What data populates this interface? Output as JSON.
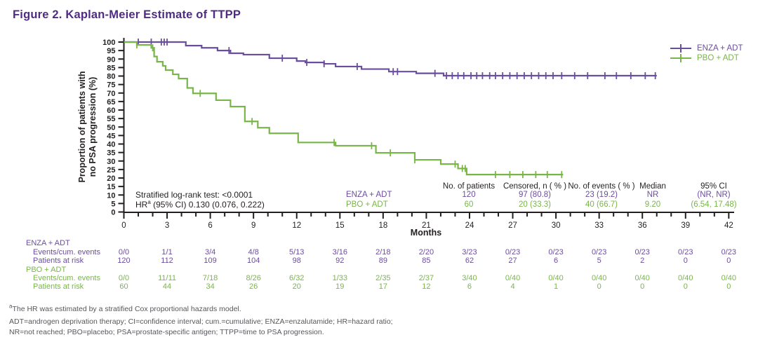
{
  "title": "Figure 2. Kaplan-Meier Estimate of TTPP",
  "colors": {
    "purple": "#6b4d9e",
    "green": "#79b64a",
    "title": "#4f2c82",
    "axis": "#231f20",
    "footnote": "#56575b"
  },
  "legend": [
    {
      "label": "ENZA + ADT",
      "color_key": "purple"
    },
    {
      "label": "PBO + ADT",
      "color_key": "green"
    }
  ],
  "stats": {
    "line1": "Stratified log-rank test: <0.0001",
    "line2_prefix": "HR",
    "line2_sup": "a",
    "line2_rest": " (95% CI) 0.130 (0.076, 0.222)"
  },
  "summary_table": {
    "headers": [
      "No. of patients",
      "Censored, n ( % )",
      "No. of events ( % )",
      "Median",
      "95% CI"
    ],
    "rows": [
      {
        "group": "ENZA + ADT",
        "color_key": "purple",
        "values": [
          "120",
          "97 (80.8)",
          "23 (19.2)",
          "NR",
          "(NR, NR)"
        ]
      },
      {
        "group": "PBO + ADT",
        "color_key": "green",
        "values": [
          "60",
          "20 (33.3)",
          "40 (66.7)",
          "9.20",
          "(6.54, 17.48)"
        ]
      }
    ]
  },
  "chart_data": {
    "type": "line",
    "subtype": "kaplan-meier-step",
    "title": "Kaplan-Meier Estimate of TTPP",
    "xlabel": "Months",
    "ylabel": "Proportion of patients with no PSA progression (%)",
    "ylabel_lines": [
      "Proportion of patients with",
      "no PSA progression (%)"
    ],
    "xlim": [
      0,
      42
    ],
    "ylim": [
      0,
      100
    ],
    "x_major_ticks": [
      0,
      3,
      6,
      9,
      12,
      15,
      18,
      21,
      24,
      27,
      30,
      33,
      36,
      39,
      42
    ],
    "x_minor_step": 1,
    "y_ticks": [
      0,
      5,
      10,
      15,
      20,
      25,
      30,
      35,
      40,
      45,
      50,
      55,
      60,
      65,
      70,
      75,
      80,
      85,
      90,
      95,
      100
    ],
    "grid": false,
    "legend_position": "top-right",
    "series": [
      {
        "name": "ENZA + ADT",
        "color": "#6b4d9e",
        "step_points": [
          [
            0,
            100
          ],
          [
            4.3,
            97.9
          ],
          [
            5.4,
            96.6
          ],
          [
            6.5,
            95.0
          ],
          [
            7.4,
            93.4
          ],
          [
            8.3,
            92.6
          ],
          [
            10.1,
            90.5
          ],
          [
            12.0,
            88.8
          ],
          [
            12.6,
            88.0
          ],
          [
            13.9,
            87.2
          ],
          [
            14.7,
            85.6
          ],
          [
            16.5,
            84.1
          ],
          [
            18.4,
            82.6
          ],
          [
            20.3,
            81.6
          ],
          [
            22.2,
            80.2
          ]
        ],
        "end_month": 37.0,
        "censor_months": [
          1.0,
          1.9,
          2.6,
          2.8,
          3.0,
          7.3,
          11.0,
          12.7,
          13.9,
          16.2,
          18.7,
          19.0,
          21.6,
          22.4,
          22.8,
          23.2,
          23.6,
          24.1,
          24.5,
          24.9,
          25.4,
          25.8,
          26.3,
          26.8,
          27.3,
          27.8,
          28.3,
          28.8,
          29.3,
          29.8,
          30.4,
          31.3,
          32.2,
          33.4,
          34.2,
          35.2,
          36.2,
          36.9
        ]
      },
      {
        "name": "PBO + ADT",
        "color": "#79b64a",
        "step_points": [
          [
            0,
            100
          ],
          [
            0.9,
            98.3
          ],
          [
            1.9,
            96.6
          ],
          [
            2.1,
            91.5
          ],
          [
            2.3,
            88.4
          ],
          [
            2.7,
            86.0
          ],
          [
            2.9,
            83.5
          ],
          [
            3.4,
            81.0
          ],
          [
            3.8,
            78.5
          ],
          [
            4.4,
            73.0
          ],
          [
            4.8,
            69.8
          ],
          [
            6.4,
            65.8
          ],
          [
            7.4,
            62.0
          ],
          [
            8.4,
            53.3
          ],
          [
            9.3,
            49.6
          ],
          [
            10.1,
            46.3
          ],
          [
            12.1,
            40.9
          ],
          [
            14.7,
            39.0
          ],
          [
            17.5,
            34.8
          ],
          [
            20.2,
            30.7
          ],
          [
            22.0,
            28.2
          ],
          [
            23.2,
            25.6
          ],
          [
            23.8,
            22.0
          ]
        ],
        "end_month": 30.5,
        "censor_months": [
          0.9,
          2.0,
          5.3,
          8.9,
          14.6,
          17.2,
          18.5,
          20.2,
          23.0,
          23.5,
          23.7,
          25.8,
          26.8,
          27.7,
          28.6,
          29.4,
          30.4
        ]
      }
    ]
  },
  "risk_table": {
    "months": [
      0,
      3,
      6,
      9,
      12,
      15,
      18,
      21,
      24,
      27,
      30,
      33,
      36,
      39,
      42
    ],
    "groups": [
      {
        "label": "ENZA + ADT",
        "color_key": "purple",
        "rows": [
          {
            "label": "Events/cum. events",
            "values": [
              "0/0",
              "1/1",
              "3/4",
              "4/8",
              "5/13",
              "3/16",
              "2/18",
              "2/20",
              "3/23",
              "0/23",
              "0/23",
              "0/23",
              "0/23",
              "0/23",
              "0/23"
            ]
          },
          {
            "label": "Patients at risk",
            "values": [
              "120",
              "112",
              "109",
              "104",
              "98",
              "92",
              "89",
              "85",
              "62",
              "27",
              "6",
              "5",
              "2",
              "0",
              "0"
            ]
          }
        ]
      },
      {
        "label": "PBO + ADT",
        "color_key": "green",
        "rows": [
          {
            "label": "Events/cum. events",
            "values": [
              "0/0",
              "11/11",
              "7/18",
              "8/26",
              "6/32",
              "1/33",
              "2/35",
              "2/37",
              "3/40",
              "0/40",
              "0/40",
              "0/40",
              "0/40",
              "0/40",
              "0/40"
            ]
          },
          {
            "label": "Patients at risk",
            "values": [
              "60",
              "44",
              "34",
              "26",
              "20",
              "19",
              "17",
              "12",
              "6",
              "4",
              "1",
              "0",
              "0",
              "0",
              "0"
            ]
          }
        ]
      }
    ]
  },
  "footnotes": {
    "note_marker": "a",
    "note_text": "The HR was estimated by a stratified Cox proportional hazards model.",
    "abbrev_line1": "ADT=androgen deprivation therapy; CI=confidence interval; cum.=cumulative; ENZA=enzalutamide; HR=hazard ratio;",
    "abbrev_line2": "NR=not reached; PBO=placebo; PSA=prostate-specific antigen; TTPP=time to PSA progression."
  }
}
